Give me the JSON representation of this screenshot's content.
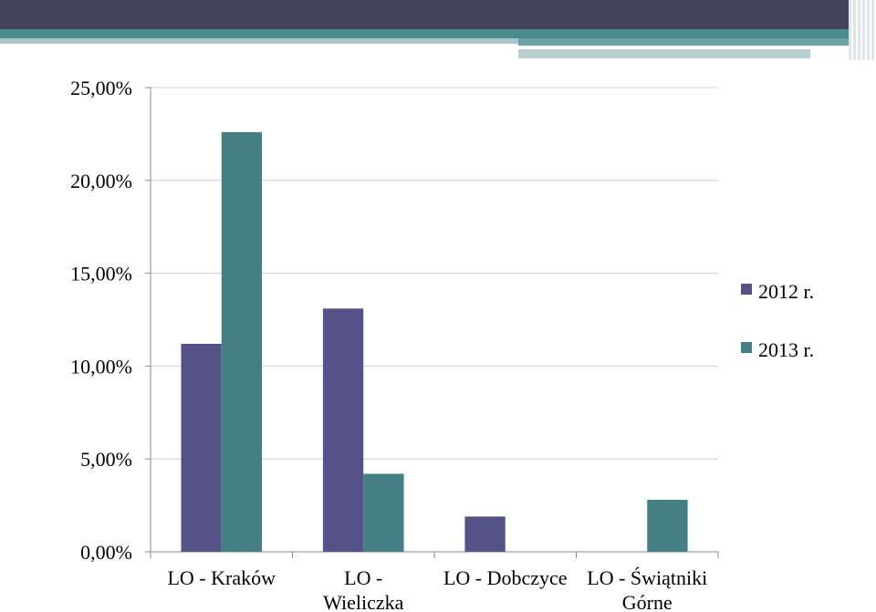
{
  "chart_data": {
    "type": "bar",
    "categories": [
      [
        "LO - Kraków"
      ],
      [
        "LO -",
        "Wieliczka"
      ],
      [
        "LO - Dobczyce"
      ],
      [
        "LO - Świątniki",
        "Górne"
      ]
    ],
    "series": [
      {
        "name": "2012 r.",
        "color": "#55528a",
        "values": [
          11.2,
          13.1,
          1.9,
          0
        ]
      },
      {
        "name": "2013 r.",
        "color": "#437f83",
        "values": [
          22.6,
          4.2,
          0,
          2.8
        ]
      }
    ],
    "ylim": [
      0,
      25
    ],
    "yticks": [
      "0,00%",
      "5,00%",
      "10,00%",
      "15,00%",
      "20,00%",
      "25,00%"
    ],
    "grid": true,
    "legend": "right"
  }
}
